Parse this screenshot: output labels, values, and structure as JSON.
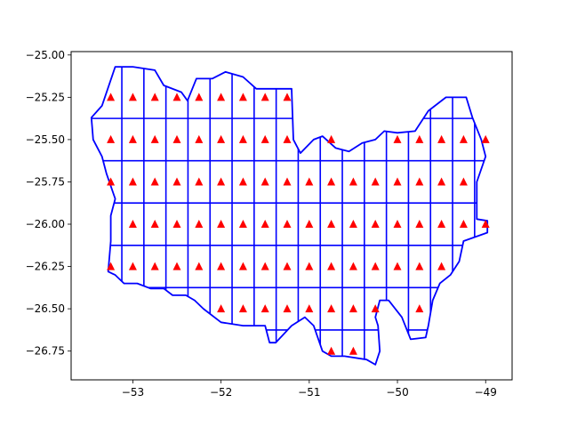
{
  "chart_data": {
    "type": "scatter",
    "title": "",
    "xlabel": "",
    "ylabel": "",
    "xlim": [
      -53.7,
      -48.7
    ],
    "ylim": [
      -26.92,
      -24.98
    ],
    "x_ticks": [
      -53,
      -52,
      -51,
      -50,
      -49
    ],
    "x_tick_labels": [
      "−53",
      "−52",
      "−51",
      "−50",
      "−49"
    ],
    "y_ticks": [
      -25.0,
      -25.25,
      -25.5,
      -25.75,
      -26.0,
      -26.25,
      -26.5,
      -26.75
    ],
    "y_tick_labels": [
      "−25.00",
      "−25.25",
      "−25.50",
      "−25.75",
      "−26.00",
      "−26.25",
      "−26.50",
      "−26.75"
    ],
    "grid": false,
    "colors": {
      "boundary": "#0000ff",
      "markers": "#ff0000"
    },
    "points": [
      [
        -53.25,
        -25.25
      ],
      [
        -53.0,
        -25.25
      ],
      [
        -52.75,
        -25.25
      ],
      [
        -52.5,
        -25.25
      ],
      [
        -52.25,
        -25.25
      ],
      [
        -52.0,
        -25.25
      ],
      [
        -51.75,
        -25.25
      ],
      [
        -51.5,
        -25.25
      ],
      [
        -51.25,
        -25.25
      ],
      [
        -53.25,
        -25.5
      ],
      [
        -53.0,
        -25.5
      ],
      [
        -52.75,
        -25.5
      ],
      [
        -52.5,
        -25.5
      ],
      [
        -52.25,
        -25.5
      ],
      [
        -52.0,
        -25.5
      ],
      [
        -51.75,
        -25.5
      ],
      [
        -51.5,
        -25.5
      ],
      [
        -51.25,
        -25.5
      ],
      [
        -50.75,
        -25.5
      ],
      [
        -50.0,
        -25.5
      ],
      [
        -49.75,
        -25.5
      ],
      [
        -49.5,
        -25.5
      ],
      [
        -49.25,
        -25.5
      ],
      [
        -49.0,
        -25.5
      ],
      [
        -53.25,
        -25.75
      ],
      [
        -53.0,
        -25.75
      ],
      [
        -52.75,
        -25.75
      ],
      [
        -52.5,
        -25.75
      ],
      [
        -52.25,
        -25.75
      ],
      [
        -52.0,
        -25.75
      ],
      [
        -51.75,
        -25.75
      ],
      [
        -51.5,
        -25.75
      ],
      [
        -51.25,
        -25.75
      ],
      [
        -51.0,
        -25.75
      ],
      [
        -50.75,
        -25.75
      ],
      [
        -50.5,
        -25.75
      ],
      [
        -50.25,
        -25.75
      ],
      [
        -50.0,
        -25.75
      ],
      [
        -49.75,
        -25.75
      ],
      [
        -49.5,
        -25.75
      ],
      [
        -49.25,
        -25.75
      ],
      [
        -53.0,
        -26.0
      ],
      [
        -52.75,
        -26.0
      ],
      [
        -52.5,
        -26.0
      ],
      [
        -52.25,
        -26.0
      ],
      [
        -52.0,
        -26.0
      ],
      [
        -51.75,
        -26.0
      ],
      [
        -51.5,
        -26.0
      ],
      [
        -51.25,
        -26.0
      ],
      [
        -51.0,
        -26.0
      ],
      [
        -50.75,
        -26.0
      ],
      [
        -50.5,
        -26.0
      ],
      [
        -50.25,
        -26.0
      ],
      [
        -50.0,
        -26.0
      ],
      [
        -49.75,
        -26.0
      ],
      [
        -49.5,
        -26.0
      ],
      [
        -49.25,
        -26.0
      ],
      [
        -49.0,
        -26.0
      ],
      [
        -53.25,
        -26.25
      ],
      [
        -53.0,
        -26.25
      ],
      [
        -52.75,
        -26.25
      ],
      [
        -52.5,
        -26.25
      ],
      [
        -52.25,
        -26.25
      ],
      [
        -52.0,
        -26.25
      ],
      [
        -51.75,
        -26.25
      ],
      [
        -51.5,
        -26.25
      ],
      [
        -51.25,
        -26.25
      ],
      [
        -51.0,
        -26.25
      ],
      [
        -50.75,
        -26.25
      ],
      [
        -50.5,
        -26.25
      ],
      [
        -50.25,
        -26.25
      ],
      [
        -50.0,
        -26.25
      ],
      [
        -49.75,
        -26.25
      ],
      [
        -49.5,
        -26.25
      ],
      [
        -52.0,
        -26.5
      ],
      [
        -51.75,
        -26.5
      ],
      [
        -51.5,
        -26.5
      ],
      [
        -51.25,
        -26.5
      ],
      [
        -51.0,
        -26.5
      ],
      [
        -50.75,
        -26.5
      ],
      [
        -50.5,
        -26.5
      ],
      [
        -50.25,
        -26.5
      ],
      [
        -49.75,
        -26.5
      ],
      [
        -50.75,
        -26.75
      ],
      [
        -50.5,
        -26.75
      ]
    ],
    "boundary": [
      [
        -53.47,
        -25.37
      ],
      [
        -53.35,
        -25.3
      ],
      [
        -53.2,
        -25.07
      ],
      [
        -53.0,
        -25.07
      ],
      [
        -52.75,
        -25.09
      ],
      [
        -52.65,
        -25.18
      ],
      [
        -52.45,
        -25.22
      ],
      [
        -52.38,
        -25.27
      ],
      [
        -52.28,
        -25.14
      ],
      [
        -52.1,
        -25.14
      ],
      [
        -51.95,
        -25.1
      ],
      [
        -51.75,
        -25.13
      ],
      [
        -51.6,
        -25.2
      ],
      [
        -51.2,
        -25.2
      ],
      [
        -51.18,
        -25.5
      ],
      [
        -51.1,
        -25.58
      ],
      [
        -50.95,
        -25.5
      ],
      [
        -50.85,
        -25.48
      ],
      [
        -50.7,
        -25.55
      ],
      [
        -50.55,
        -25.57
      ],
      [
        -50.4,
        -25.52
      ],
      [
        -50.25,
        -25.5
      ],
      [
        -50.15,
        -25.45
      ],
      [
        -50.0,
        -25.46
      ],
      [
        -49.8,
        -25.45
      ],
      [
        -49.65,
        -25.33
      ],
      [
        -49.45,
        -25.25
      ],
      [
        -49.22,
        -25.25
      ],
      [
        -49.15,
        -25.37
      ],
      [
        -49.05,
        -25.5
      ],
      [
        -49.0,
        -25.6
      ],
      [
        -49.1,
        -25.75
      ],
      [
        -49.1,
        -25.97
      ],
      [
        -48.98,
        -25.98
      ],
      [
        -48.98,
        -26.05
      ],
      [
        -49.25,
        -26.1
      ],
      [
        -49.3,
        -26.22
      ],
      [
        -49.4,
        -26.3
      ],
      [
        -49.52,
        -26.35
      ],
      [
        -49.6,
        -26.45
      ],
      [
        -49.65,
        -26.6
      ],
      [
        -49.68,
        -26.67
      ],
      [
        -49.85,
        -26.68
      ],
      [
        -49.95,
        -26.55
      ],
      [
        -50.1,
        -26.45
      ],
      [
        -50.2,
        -26.45
      ],
      [
        -50.25,
        -26.55
      ],
      [
        -50.22,
        -26.6
      ],
      [
        -50.2,
        -26.75
      ],
      [
        -50.25,
        -26.83
      ],
      [
        -50.35,
        -26.8
      ],
      [
        -50.6,
        -26.78
      ],
      [
        -50.75,
        -26.78
      ],
      [
        -50.85,
        -26.75
      ],
      [
        -50.95,
        -26.6
      ],
      [
        -51.05,
        -26.55
      ],
      [
        -51.2,
        -26.6
      ],
      [
        -51.38,
        -26.7
      ],
      [
        -51.45,
        -26.7
      ],
      [
        -51.5,
        -26.6
      ],
      [
        -51.75,
        -26.6
      ],
      [
        -52.0,
        -26.58
      ],
      [
        -52.2,
        -26.5
      ],
      [
        -52.3,
        -26.45
      ],
      [
        -52.4,
        -26.42
      ],
      [
        -52.55,
        -26.42
      ],
      [
        -52.65,
        -26.38
      ],
      [
        -52.8,
        -26.38
      ],
      [
        -52.95,
        -26.35
      ],
      [
        -53.1,
        -26.35
      ],
      [
        -53.2,
        -26.3
      ],
      [
        -53.28,
        -26.28
      ],
      [
        -53.25,
        -26.1
      ],
      [
        -53.25,
        -25.95
      ],
      [
        -53.2,
        -25.85
      ],
      [
        -53.3,
        -25.7
      ],
      [
        -53.35,
        -25.6
      ],
      [
        -53.45,
        -25.5
      ]
    ],
    "grid_lines_lat": [
      -25.375,
      -25.625,
      -25.875,
      -26.125,
      -26.375,
      -26.625
    ],
    "grid_lines_lon": [
      -53.125,
      -52.875,
      -52.625,
      -52.375,
      -52.125,
      -51.875,
      -51.625,
      -51.375,
      -51.125,
      -50.875,
      -50.625,
      -50.375,
      -50.125,
      -49.875,
      -49.625,
      -49.375,
      -49.125
    ]
  }
}
